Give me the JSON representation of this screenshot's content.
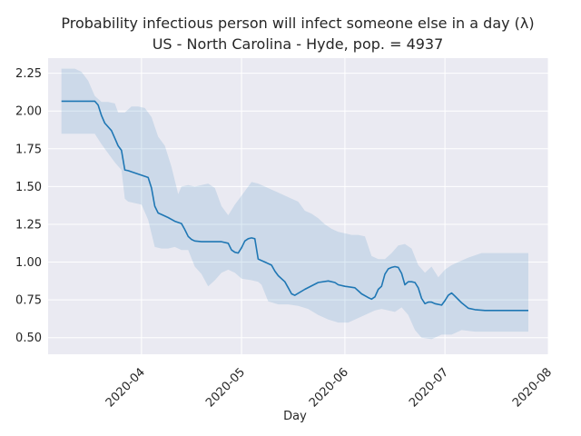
{
  "chart_data": {
    "type": "line",
    "title": "Probability infectious person will infect someone else in a day (λ)",
    "subtitle": "US - North Carolina - Hyde, pop. = 4937",
    "xlabel": "Day",
    "ylabel": "",
    "x_axis_type": "date",
    "xlim": [
      "2020-03-04",
      "2020-08-01"
    ],
    "ylim": [
      0.39,
      2.35
    ],
    "x_ticks": [
      "2020-04",
      "2020-05",
      "2020-06",
      "2020-07",
      "2020-08"
    ],
    "y_ticks": [
      0.5,
      0.75,
      1.0,
      1.25,
      1.5,
      1.75,
      2.0,
      2.25
    ],
    "y_tick_labels": [
      "0.50",
      "0.75",
      "1.00",
      "1.25",
      "1.50",
      "1.75",
      "2.00",
      "2.25"
    ],
    "grid": true,
    "background": "#eaeaf2",
    "colors": {
      "line": "#1f77b4",
      "band": "#1f77b4"
    },
    "series": [
      {
        "role": "estimate",
        "x": [
          "2020-03-08",
          "2020-03-18",
          "2020-03-19",
          "2020-03-20",
          "2020-03-21",
          "2020-03-23",
          "2020-03-24",
          "2020-03-25",
          "2020-03-26",
          "2020-03-27",
          "2020-03-28",
          "2020-03-30",
          "2020-04-01",
          "2020-04-03",
          "2020-04-04",
          "2020-04-05",
          "2020-04-06",
          "2020-04-07",
          "2020-04-09",
          "2020-04-11",
          "2020-04-13",
          "2020-04-14",
          "2020-04-15",
          "2020-04-16",
          "2020-04-17",
          "2020-04-19",
          "2020-04-21",
          "2020-04-25",
          "2020-04-27",
          "2020-04-28",
          "2020-04-29",
          "2020-04-30",
          "2020-05-01",
          "2020-05-02",
          "2020-05-03",
          "2020-05-04",
          "2020-05-05",
          "2020-05-06",
          "2020-05-07",
          "2020-05-08",
          "2020-05-10",
          "2020-05-11",
          "2020-05-12",
          "2020-05-14",
          "2020-05-15",
          "2020-05-16",
          "2020-05-17",
          "2020-05-20",
          "2020-05-24",
          "2020-05-27",
          "2020-05-29",
          "2020-05-30",
          "2020-06-01",
          "2020-06-04",
          "2020-06-05",
          "2020-06-06",
          "2020-06-08",
          "2020-06-09",
          "2020-06-10",
          "2020-06-11",
          "2020-06-12",
          "2020-06-13",
          "2020-06-14",
          "2020-06-15",
          "2020-06-16",
          "2020-06-17",
          "2020-06-18",
          "2020-06-19",
          "2020-06-20",
          "2020-06-21",
          "2020-06-22",
          "2020-06-23",
          "2020-06-24",
          "2020-06-25",
          "2020-06-26",
          "2020-06-27",
          "2020-06-28",
          "2020-06-30",
          "2020-07-01",
          "2020-07-02",
          "2020-07-03",
          "2020-07-04",
          "2020-07-06",
          "2020-07-08",
          "2020-07-10",
          "2020-07-13",
          "2020-07-17",
          "2020-07-20",
          "2020-07-26"
        ],
        "y": [
          2.065,
          2.065,
          2.04,
          1.97,
          1.92,
          1.87,
          1.82,
          1.77,
          1.74,
          1.61,
          1.605,
          1.59,
          1.575,
          1.56,
          1.49,
          1.37,
          1.325,
          1.315,
          1.295,
          1.27,
          1.255,
          1.215,
          1.17,
          1.15,
          1.14,
          1.135,
          1.135,
          1.135,
          1.125,
          1.08,
          1.065,
          1.06,
          1.095,
          1.14,
          1.155,
          1.16,
          1.155,
          1.02,
          1.01,
          1.0,
          0.98,
          0.94,
          0.91,
          0.87,
          0.83,
          0.79,
          0.78,
          0.82,
          0.865,
          0.875,
          0.865,
          0.85,
          0.84,
          0.83,
          0.81,
          0.79,
          0.765,
          0.755,
          0.77,
          0.82,
          0.84,
          0.92,
          0.955,
          0.965,
          0.97,
          0.965,
          0.925,
          0.85,
          0.87,
          0.87,
          0.865,
          0.83,
          0.76,
          0.725,
          0.735,
          0.735,
          0.725,
          0.715,
          0.745,
          0.78,
          0.795,
          0.775,
          0.73,
          0.695,
          0.685,
          0.68,
          0.68,
          0.68,
          0.68
        ]
      },
      {
        "role": "upper-bound",
        "x": [
          "2020-03-08",
          "2020-03-12",
          "2020-03-14",
          "2020-03-16",
          "2020-03-18",
          "2020-03-20",
          "2020-03-22",
          "2020-03-24",
          "2020-03-25",
          "2020-03-27",
          "2020-03-29",
          "2020-03-31",
          "2020-04-02",
          "2020-04-04",
          "2020-04-06",
          "2020-04-08",
          "2020-04-10",
          "2020-04-12",
          "2020-04-13",
          "2020-04-15",
          "2020-04-17",
          "2020-04-19",
          "2020-04-21",
          "2020-04-23",
          "2020-04-25",
          "2020-04-27",
          "2020-04-29",
          "2020-05-01",
          "2020-05-03",
          "2020-05-04",
          "2020-05-06",
          "2020-05-08",
          "2020-05-10",
          "2020-05-12",
          "2020-05-14",
          "2020-05-16",
          "2020-05-18",
          "2020-05-20",
          "2020-05-22",
          "2020-05-24",
          "2020-05-26",
          "2020-05-28",
          "2020-05-30",
          "2020-06-01",
          "2020-06-03",
          "2020-06-05",
          "2020-06-07",
          "2020-06-09",
          "2020-06-11",
          "2020-06-13",
          "2020-06-15",
          "2020-06-17",
          "2020-06-19",
          "2020-06-21",
          "2020-06-23",
          "2020-06-25",
          "2020-06-27",
          "2020-06-29",
          "2020-07-01",
          "2020-07-03",
          "2020-07-05",
          "2020-07-08",
          "2020-07-12",
          "2020-07-16",
          "2020-07-26"
        ],
        "y": [
          2.28,
          2.28,
          2.26,
          2.2,
          2.1,
          2.06,
          2.06,
          2.05,
          1.99,
          1.99,
          2.03,
          2.03,
          2.02,
          1.96,
          1.83,
          1.77,
          1.63,
          1.45,
          1.5,
          1.51,
          1.5,
          1.51,
          1.52,
          1.49,
          1.37,
          1.31,
          1.38,
          1.44,
          1.5,
          1.53,
          1.52,
          1.5,
          1.48,
          1.46,
          1.44,
          1.42,
          1.4,
          1.34,
          1.32,
          1.29,
          1.25,
          1.22,
          1.2,
          1.19,
          1.18,
          1.18,
          1.17,
          1.04,
          1.02,
          1.02,
          1.06,
          1.11,
          1.12,
          1.09,
          0.98,
          0.93,
          0.97,
          0.9,
          0.95,
          0.98,
          1.0,
          1.03,
          1.06,
          1.06,
          1.06
        ]
      },
      {
        "role": "lower-bound",
        "x": [
          "2020-03-08",
          "2020-03-18",
          "2020-03-20",
          "2020-03-22",
          "2020-03-24",
          "2020-03-26",
          "2020-03-27",
          "2020-03-28",
          "2020-04-01",
          "2020-04-03",
          "2020-04-05",
          "2020-04-07",
          "2020-04-09",
          "2020-04-11",
          "2020-04-13",
          "2020-04-15",
          "2020-04-17",
          "2020-04-19",
          "2020-04-21",
          "2020-04-23",
          "2020-04-25",
          "2020-04-27",
          "2020-04-29",
          "2020-05-01",
          "2020-05-04",
          "2020-05-06",
          "2020-05-07",
          "2020-05-09",
          "2020-05-12",
          "2020-05-15",
          "2020-05-18",
          "2020-05-21",
          "2020-05-24",
          "2020-05-27",
          "2020-05-30",
          "2020-06-02",
          "2020-06-05",
          "2020-06-08",
          "2020-06-10",
          "2020-06-12",
          "2020-06-14",
          "2020-06-16",
          "2020-06-18",
          "2020-06-20",
          "2020-06-22",
          "2020-06-24",
          "2020-06-27",
          "2020-06-30",
          "2020-07-03",
          "2020-07-06",
          "2020-07-10",
          "2020-07-14",
          "2020-07-26"
        ],
        "y": [
          1.85,
          1.85,
          1.78,
          1.72,
          1.66,
          1.61,
          1.42,
          1.4,
          1.38,
          1.28,
          1.1,
          1.09,
          1.09,
          1.1,
          1.08,
          1.08,
          0.97,
          0.92,
          0.84,
          0.88,
          0.93,
          0.95,
          0.93,
          0.89,
          0.88,
          0.87,
          0.85,
          0.74,
          0.72,
          0.72,
          0.71,
          0.69,
          0.65,
          0.62,
          0.6,
          0.6,
          0.63,
          0.66,
          0.68,
          0.69,
          0.68,
          0.67,
          0.7,
          0.65,
          0.55,
          0.5,
          0.49,
          0.52,
          0.52,
          0.55,
          0.54,
          0.54,
          0.54
        ]
      }
    ]
  }
}
